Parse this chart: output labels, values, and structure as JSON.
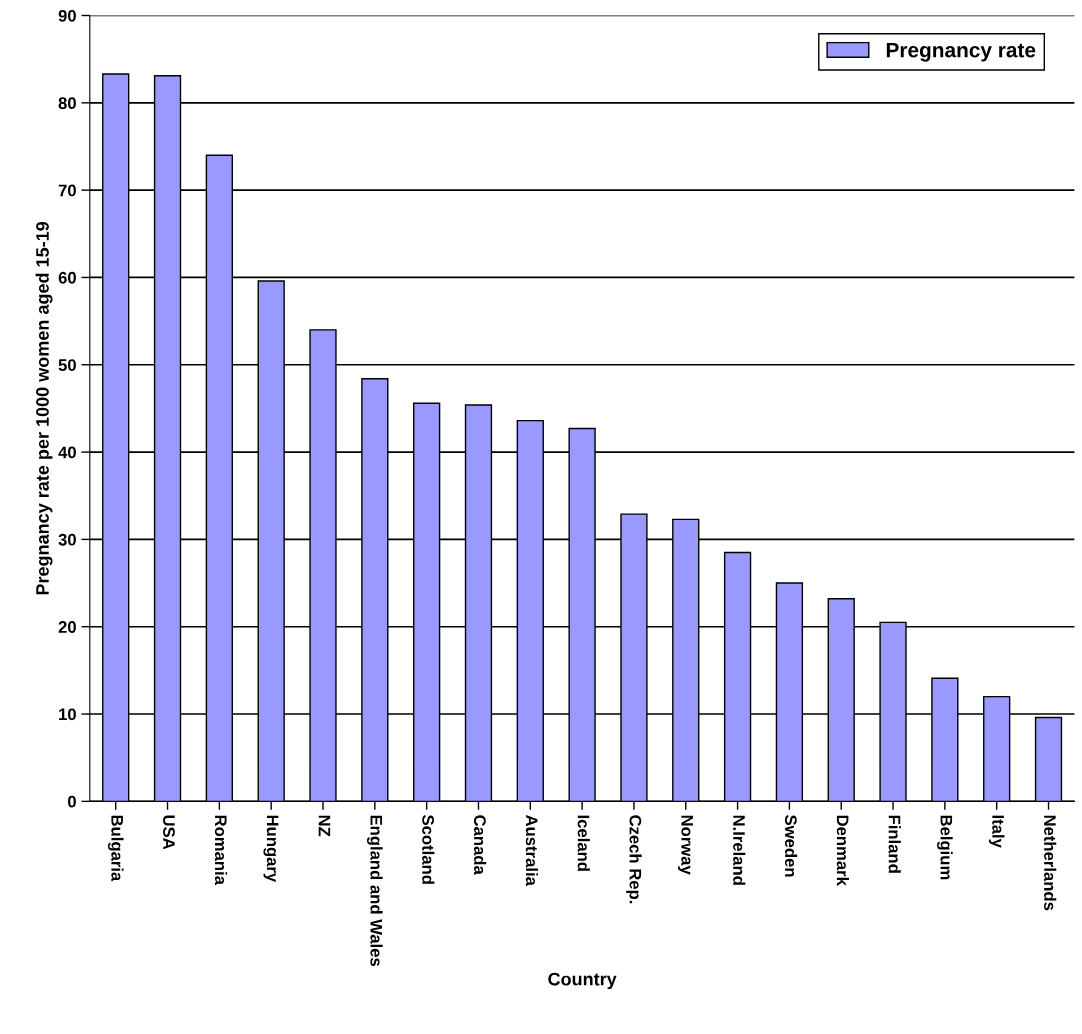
{
  "chart_data": {
    "type": "bar",
    "xlabel": "Country",
    "ylabel": "Pregnancy rate per 1000 women aged 15-19",
    "categories": [
      "Bulgaria",
      "USA",
      "Romania",
      "Hungary",
      "NZ",
      "England and Wales",
      "Scotland",
      "Canada",
      "Australia",
      "Iceland",
      "Czech Rep.",
      "Norway",
      "N.Ireland",
      "Sweden",
      "Denmark",
      "Finland",
      "Belgium",
      "Italy",
      "Netherlands"
    ],
    "series": [
      {
        "name": "Pregnancy rate",
        "color": "#9999ff",
        "values": [
          83.3,
          83.1,
          74.0,
          59.6,
          54.0,
          48.4,
          45.6,
          45.4,
          43.6,
          42.7,
          32.9,
          32.3,
          28.5,
          25.0,
          23.2,
          20.5,
          14.1,
          12.0,
          9.6
        ]
      }
    ],
    "ylim": [
      0,
      90
    ],
    "yticks": [
      0,
      10,
      20,
      30,
      40,
      50,
      60,
      70,
      80,
      90
    ],
    "grid": "y",
    "legend": "top right"
  }
}
